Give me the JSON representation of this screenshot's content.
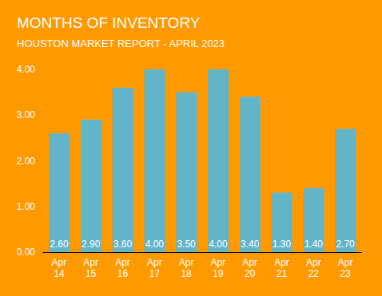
{
  "chart_data": {
    "type": "bar",
    "title": "MONTHS OF INVENTORY",
    "subtitle": "HOUSTON MARKET REPORT - APRIL 2023",
    "categories": [
      "Apr 14",
      "Apr 15",
      "Apr 16",
      "Apr 17",
      "Apr 18",
      "Apr 19",
      "Apr 20",
      "Apr 21",
      "Apr 22",
      "Apr 23"
    ],
    "values": [
      2.6,
      2.9,
      3.6,
      4.0,
      3.5,
      4.0,
      3.4,
      1.3,
      1.4,
      2.7
    ],
    "value_labels": [
      "2.60",
      "2.90",
      "3.60",
      "4.00",
      "3.50",
      "4.00",
      "3.40",
      "1.30",
      "1.40",
      "2.70"
    ],
    "color": "#62b5c9",
    "ylim": [
      0,
      4
    ],
    "yticks": [
      {
        "value": 0,
        "label": "0.00"
      },
      {
        "value": 1,
        "label": "1.00"
      },
      {
        "value": 2,
        "label": "2.00"
      },
      {
        "value": 3,
        "label": "3.00"
      },
      {
        "value": 4,
        "label": "4.00"
      }
    ],
    "grid": false,
    "data_labels": true
  }
}
